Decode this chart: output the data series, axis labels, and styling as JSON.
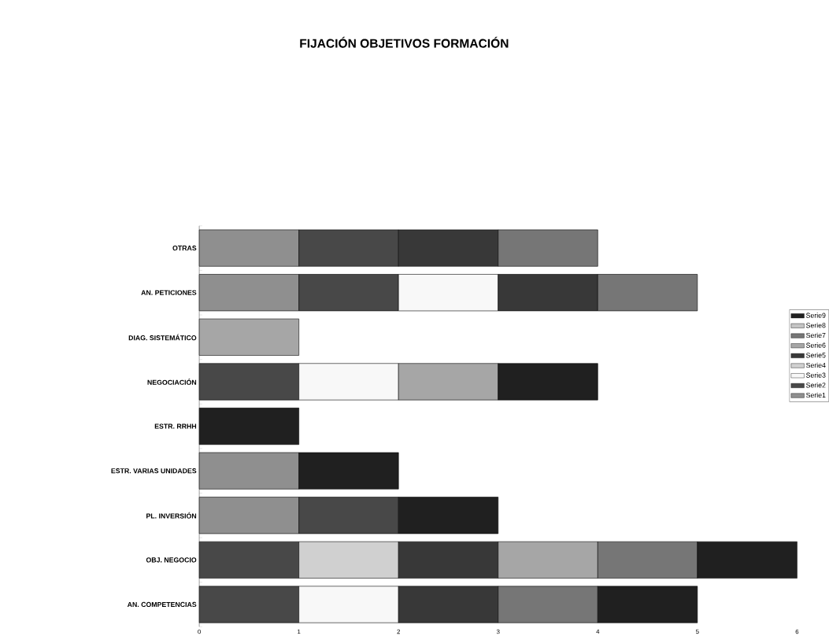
{
  "chart_data": {
    "type": "bar",
    "orientation": "horizontal",
    "stacked": true,
    "title": "FIJACIÓN OBJETIVOS FORMACIÓN",
    "categories": [
      "OTRAS",
      "AN. PETICIONES",
      "DIAG. SISTEMÁTICO",
      "NEGOCIACIÓN",
      "ESTR. RRHH",
      "ESTR. VARIAS UNIDADES",
      "PL. INVERSIÓN",
      "OBJ. NEGOCIO",
      "AN. COMPETENCIAS"
    ],
    "series": [
      {
        "name": "Serie1",
        "color": "#8f8f8f",
        "values": [
          1,
          1,
          null,
          null,
          null,
          1,
          1,
          null,
          null
        ]
      },
      {
        "name": "Serie2",
        "color": "#484848",
        "values": [
          1,
          1,
          null,
          1,
          null,
          null,
          1,
          1,
          1
        ]
      },
      {
        "name": "Serie3",
        "color": "#f8f8f8",
        "values": [
          null,
          1,
          null,
          1,
          null,
          null,
          null,
          null,
          1
        ]
      },
      {
        "name": "Serie4",
        "color": "#d0d0d0",
        "values": [
          null,
          null,
          null,
          null,
          null,
          null,
          null,
          1,
          null
        ]
      },
      {
        "name": "Serie5",
        "color": "#383838",
        "values": [
          1,
          1,
          null,
          null,
          null,
          null,
          null,
          1,
          1
        ]
      },
      {
        "name": "Serie6",
        "color": "#a6a6a6",
        "values": [
          null,
          null,
          1,
          1,
          null,
          null,
          null,
          1,
          null
        ]
      },
      {
        "name": "Serie7",
        "color": "#767676",
        "values": [
          1,
          1,
          null,
          null,
          null,
          null,
          null,
          1,
          1
        ]
      },
      {
        "name": "Serie8",
        "color": "#c4c4c4",
        "values": [
          null,
          null,
          null,
          null,
          null,
          null,
          null,
          null,
          null
        ]
      },
      {
        "name": "Serie9",
        "color": "#202020",
        "values": [
          null,
          null,
          null,
          1,
          1,
          1,
          1,
          1,
          1
        ]
      }
    ],
    "xlim": [
      0,
      6
    ],
    "xticks": [
      0,
      1,
      2,
      3,
      4,
      5,
      6
    ],
    "legend": "right"
  }
}
